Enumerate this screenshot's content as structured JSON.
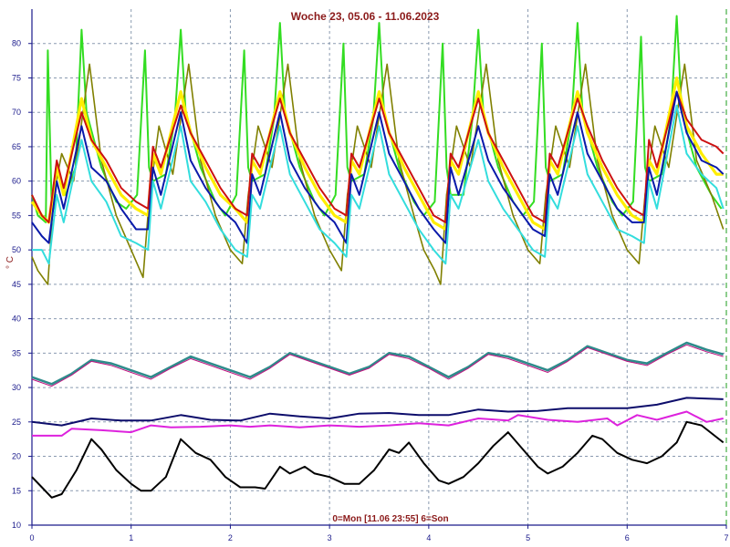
{
  "chart_data": {
    "type": "line",
    "title": "Woche 23, 05.06 - 11.06.2023",
    "subtitle": "0=Mon [11.06 23:55] 6=Son",
    "ylabel": "° C",
    "xlim": [
      0,
      7
    ],
    "ylim": [
      10,
      85
    ],
    "x_ticks": [
      "0",
      "1",
      "2",
      "3",
      "4",
      "5",
      "6",
      "7"
    ],
    "y_ticks": [
      "10",
      "15",
      "20",
      "25",
      "30",
      "35",
      "40",
      "45",
      "50",
      "55",
      "60",
      "65",
      "70",
      "75",
      "80"
    ],
    "grid": true,
    "colors": {
      "green": "#33dd22",
      "olive": "#808000",
      "yellow": "#ffee00",
      "red": "#cc1111",
      "blue": "#0a1aaa",
      "cyan": "#33dddd",
      "teal": "#2e8b8b",
      "magenta_thin": "#c0117f",
      "navy": "#0d0d6b",
      "magenta": "#dd22dd",
      "black": "#000000"
    },
    "series": [
      {
        "color": "green",
        "x": [
          0,
          0.06,
          0.14,
          0.16,
          0.2,
          0.22,
          0.25,
          0.34,
          0.44,
          0.5,
          0.55,
          0.7,
          0.85,
          0.95,
          1.06,
          1.14,
          1.18,
          1.22,
          1.35,
          1.44,
          1.5,
          1.55,
          1.7,
          1.85,
          1.95,
          2.06,
          2.14,
          2.18,
          2.22,
          2.35,
          2.44,
          2.5,
          2.55,
          2.7,
          2.85,
          2.95,
          3.06,
          3.14,
          3.18,
          3.22,
          3.35,
          3.44,
          3.5,
          3.55,
          3.7,
          3.85,
          3.95,
          4.06,
          4.14,
          4.18,
          4.22,
          4.35,
          4.44,
          4.5,
          4.55,
          4.7,
          4.85,
          4.95,
          5.06,
          5.14,
          5.18,
          5.22,
          5.35,
          5.44,
          5.5,
          5.55,
          5.7,
          5.85,
          5.95,
          6.06,
          6.14,
          6.18,
          6.22,
          6.35,
          6.44,
          6.5,
          6.55,
          6.7,
          6.85,
          6.95
        ],
        "y": [
          58,
          55,
          54,
          79,
          56,
          56,
          62,
          58,
          62,
          82,
          70,
          62,
          57,
          56,
          58,
          79,
          62,
          60,
          61,
          69,
          82,
          70,
          62,
          57,
          55,
          58,
          79,
          62,
          60,
          61,
          69,
          83,
          70,
          62,
          57,
          55,
          58,
          80,
          62,
          60,
          61,
          69,
          83,
          70,
          62,
          57,
          55,
          57,
          80,
          62,
          58,
          58,
          69,
          82,
          70,
          62,
          57,
          55,
          57,
          80,
          62,
          60,
          61,
          69,
          83,
          70,
          62,
          57,
          55,
          57,
          81,
          62,
          60,
          61,
          69,
          84,
          70,
          62,
          58,
          56
        ]
      },
      {
        "color": "olive",
        "x": [
          0,
          0.06,
          0.16,
          0.22,
          0.3,
          0.42,
          0.58,
          0.7,
          0.85,
          1.0,
          1.12,
          1.18,
          1.28,
          1.42,
          1.58,
          1.7,
          1.85,
          2.0,
          2.12,
          2.18,
          2.28,
          2.42,
          2.58,
          2.7,
          2.85,
          3.0,
          3.12,
          3.18,
          3.28,
          3.42,
          3.58,
          3.7,
          3.85,
          3.95,
          4.06,
          4.12,
          4.18,
          4.28,
          4.42,
          4.58,
          4.7,
          4.85,
          5.0,
          5.12,
          5.18,
          5.28,
          5.42,
          5.58,
          5.7,
          5.85,
          6.0,
          6.12,
          6.18,
          6.28,
          6.42,
          6.58,
          6.7,
          6.85,
          6.97
        ],
        "y": [
          49,
          47,
          45,
          58,
          64,
          60,
          77,
          63,
          55,
          50,
          46,
          57,
          68,
          61,
          77,
          63,
          55,
          50,
          48,
          58,
          68,
          62,
          77,
          63,
          55,
          50,
          47,
          58,
          68,
          62,
          77,
          63,
          55,
          50,
          47,
          45,
          58,
          68,
          62,
          77,
          63,
          55,
          50,
          48,
          58,
          68,
          62,
          77,
          63,
          55,
          50,
          48,
          58,
          68,
          62,
          77,
          63,
          58,
          53
        ]
      },
      {
        "color": "yellow",
        "x": [
          0,
          0.1,
          0.17,
          0.25,
          0.32,
          0.5,
          0.6,
          0.75,
          0.9,
          1.05,
          1.17,
          1.22,
          1.3,
          1.5,
          1.6,
          1.75,
          1.9,
          2.05,
          2.17,
          2.22,
          2.3,
          2.5,
          2.6,
          2.75,
          2.9,
          3.05,
          3.17,
          3.22,
          3.3,
          3.5,
          3.6,
          3.75,
          3.9,
          4.05,
          4.17,
          4.22,
          4.3,
          4.5,
          4.6,
          4.75,
          4.9,
          5.05,
          5.17,
          5.22,
          5.3,
          5.5,
          5.6,
          5.75,
          5.9,
          6.05,
          6.17,
          6.22,
          6.3,
          6.5,
          6.6,
          6.75,
          6.9,
          6.97
        ],
        "y": [
          57,
          55,
          54,
          62,
          58,
          72,
          66,
          62,
          58,
          56,
          55,
          64,
          61,
          73,
          67,
          62,
          58,
          56,
          54,
          63,
          61,
          73,
          67,
          62,
          58,
          55,
          54,
          63,
          61,
          73,
          67,
          62,
          58,
          54,
          53,
          63,
          61,
          73,
          67,
          62,
          58,
          54,
          53,
          63,
          61,
          73,
          67,
          62,
          58,
          55,
          54,
          63,
          61,
          75,
          68,
          64,
          61,
          61
        ]
      },
      {
        "color": "red",
        "x": [
          0,
          0.1,
          0.17,
          0.25,
          0.32,
          0.5,
          0.6,
          0.75,
          0.9,
          1.05,
          1.17,
          1.22,
          1.3,
          1.5,
          1.6,
          1.75,
          1.9,
          2.05,
          2.17,
          2.22,
          2.3,
          2.5,
          2.6,
          2.75,
          2.9,
          3.05,
          3.17,
          3.22,
          3.3,
          3.5,
          3.6,
          3.75,
          3.9,
          4.05,
          4.17,
          4.22,
          4.3,
          4.5,
          4.6,
          4.75,
          4.9,
          5.05,
          5.17,
          5.22,
          5.3,
          5.5,
          5.6,
          5.75,
          5.9,
          6.05,
          6.17,
          6.22,
          6.3,
          6.5,
          6.6,
          6.75,
          6.9,
          6.97
        ],
        "y": [
          58,
          55,
          54,
          63,
          59,
          70,
          66,
          63,
          59,
          57,
          56,
          65,
          62,
          71,
          67,
          63,
          59,
          56,
          55,
          64,
          62,
          72,
          67,
          63,
          59,
          56,
          55,
          64,
          62,
          72,
          67,
          63,
          59,
          55,
          54,
          64,
          62,
          72,
          67,
          63,
          59,
          55,
          54,
          64,
          62,
          72,
          68,
          63,
          59,
          56,
          55,
          66,
          62,
          73,
          69,
          66,
          65,
          64
        ]
      },
      {
        "color": "blue",
        "x": [
          0,
          0.1,
          0.17,
          0.25,
          0.32,
          0.5,
          0.6,
          0.75,
          0.9,
          1.05,
          1.17,
          1.22,
          1.3,
          1.5,
          1.6,
          1.75,
          1.9,
          2.05,
          2.17,
          2.22,
          2.3,
          2.5,
          2.6,
          2.75,
          2.9,
          3.05,
          3.17,
          3.22,
          3.3,
          3.5,
          3.6,
          3.75,
          3.9,
          4.05,
          4.17,
          4.22,
          4.3,
          4.5,
          4.6,
          4.75,
          4.9,
          5.05,
          5.17,
          5.22,
          5.3,
          5.5,
          5.6,
          5.75,
          5.9,
          6.05,
          6.17,
          6.22,
          6.3,
          6.5,
          6.6,
          6.75,
          6.9,
          6.97
        ],
        "y": [
          54,
          52,
          51,
          60,
          56,
          68,
          62,
          60,
          56,
          53,
          53,
          62,
          58,
          70,
          63,
          59,
          56,
          54,
          51,
          61,
          58,
          70,
          63,
          59,
          56,
          54,
          51,
          61,
          58,
          70,
          64,
          60,
          56,
          53,
          51,
          62,
          58,
          68,
          63,
          59,
          56,
          53,
          52,
          61,
          58,
          70,
          64,
          60,
          56,
          54,
          54,
          62,
          58,
          73,
          67,
          63,
          62,
          61
        ]
      },
      {
        "color": "cyan",
        "x": [
          0,
          0.1,
          0.17,
          0.25,
          0.32,
          0.5,
          0.6,
          0.75,
          0.9,
          1.05,
          1.17,
          1.22,
          1.3,
          1.5,
          1.6,
          1.75,
          1.9,
          2.05,
          2.17,
          2.22,
          2.3,
          2.5,
          2.6,
          2.75,
          2.9,
          3.05,
          3.17,
          3.22,
          3.3,
          3.5,
          3.6,
          3.75,
          3.9,
          4.05,
          4.17,
          4.22,
          4.3,
          4.5,
          4.6,
          4.75,
          4.9,
          5.05,
          5.17,
          5.22,
          5.3,
          5.5,
          5.6,
          5.75,
          5.9,
          6.05,
          6.17,
          6.22,
          6.3,
          6.5,
          6.6,
          6.75,
          6.9,
          6.97
        ],
        "y": [
          50,
          50,
          48,
          58,
          54,
          66,
          60,
          57,
          52,
          51,
          50,
          60,
          56,
          68,
          60,
          57,
          53,
          50,
          49,
          58,
          56,
          68,
          61,
          57,
          53,
          51,
          49,
          58,
          56,
          68,
          61,
          57,
          53,
          50,
          48,
          58,
          56,
          66,
          60,
          56,
          53,
          50,
          49,
          58,
          56,
          68,
          61,
          57,
          53,
          52,
          51,
          60,
          56,
          71,
          64,
          61,
          59,
          56
        ]
      },
      {
        "color": "teal",
        "x": [
          0,
          0.2,
          0.4,
          0.6,
          0.8,
          1.0,
          1.2,
          1.4,
          1.6,
          1.8,
          2.0,
          2.2,
          2.4,
          2.6,
          2.8,
          3.0,
          3.2,
          3.4,
          3.6,
          3.8,
          4.0,
          4.2,
          4.4,
          4.6,
          4.8,
          5.0,
          5.2,
          5.4,
          5.6,
          5.8,
          6.0,
          6.2,
          6.4,
          6.6,
          6.8,
          6.97
        ],
        "y": [
          31.5,
          30.5,
          32,
          34,
          33.5,
          32.5,
          31.5,
          33,
          34.5,
          33.5,
          32.5,
          31.5,
          33,
          35,
          34,
          33,
          32,
          33,
          35,
          34.5,
          33,
          31.5,
          33,
          35,
          34.5,
          33.5,
          32.5,
          34,
          36,
          35,
          34,
          33.5,
          35,
          36.5,
          35.5,
          34.8
        ]
      },
      {
        "color": "magenta_thin",
        "x": [
          0,
          0.2,
          0.4,
          0.6,
          0.8,
          1.0,
          1.2,
          1.4,
          1.6,
          1.8,
          2.0,
          2.2,
          2.4,
          2.6,
          2.8,
          3.0,
          3.2,
          3.4,
          3.6,
          3.8,
          4.0,
          4.2,
          4.4,
          4.6,
          4.8,
          5.0,
          5.2,
          5.4,
          5.6,
          5.8,
          6.0,
          6.2,
          6.4,
          6.6,
          6.8,
          6.97
        ],
        "y": [
          31.2,
          30.2,
          31.8,
          33.8,
          33.2,
          32.2,
          31.2,
          32.8,
          34.2,
          33.2,
          32.2,
          31.2,
          32.8,
          34.8,
          33.8,
          32.8,
          31.8,
          32.8,
          34.8,
          34.2,
          32.8,
          31.2,
          32.8,
          34.8,
          34.2,
          33.2,
          32.2,
          33.8,
          35.8,
          34.8,
          33.8,
          33.2,
          34.8,
          36.2,
          35.2,
          34.5
        ]
      },
      {
        "color": "navy",
        "x": [
          0,
          0.3,
          0.6,
          0.9,
          1.2,
          1.5,
          1.8,
          2.1,
          2.4,
          2.7,
          3.0,
          3.3,
          3.6,
          3.9,
          4.2,
          4.5,
          4.8,
          5.1,
          5.4,
          5.7,
          6.0,
          6.3,
          6.6,
          6.97
        ],
        "y": [
          25,
          24.5,
          25.5,
          25.2,
          25.2,
          26,
          25.3,
          25.2,
          26.2,
          25.8,
          25.5,
          26.2,
          26.3,
          26,
          26,
          26.8,
          26.5,
          26.6,
          27,
          27,
          27,
          27.5,
          28.5,
          28.3
        ]
      },
      {
        "color": "magenta",
        "x": [
          0,
          0.3,
          0.4,
          0.7,
          1.0,
          1.2,
          1.4,
          1.7,
          2.0,
          2.2,
          2.4,
          2.7,
          3.0,
          3.3,
          3.6,
          3.9,
          4.2,
          4.5,
          4.8,
          4.9,
          5.2,
          5.5,
          5.8,
          5.9,
          6.1,
          6.3,
          6.6,
          6.8,
          6.97
        ],
        "y": [
          23,
          23,
          24,
          23.8,
          23.5,
          24.5,
          24.2,
          24.3,
          24.5,
          24.3,
          24.5,
          24.2,
          24.5,
          24.3,
          24.5,
          24.8,
          24.5,
          25.5,
          25.2,
          26,
          25.3,
          25,
          25.5,
          24.5,
          26,
          25.3,
          26.5,
          25,
          25.5
        ]
      },
      {
        "color": "black",
        "x": [
          0,
          0.1,
          0.2,
          0.3,
          0.45,
          0.6,
          0.7,
          0.85,
          1.0,
          1.1,
          1.2,
          1.35,
          1.5,
          1.65,
          1.8,
          1.95,
          2.1,
          2.25,
          2.35,
          2.5,
          2.6,
          2.75,
          2.85,
          3.0,
          3.15,
          3.3,
          3.45,
          3.6,
          3.7,
          3.8,
          3.95,
          4.1,
          4.2,
          4.35,
          4.5,
          4.65,
          4.8,
          4.95,
          5.1,
          5.2,
          5.35,
          5.5,
          5.65,
          5.75,
          5.9,
          6.05,
          6.2,
          6.35,
          6.5,
          6.6,
          6.75,
          6.97
        ],
        "y": [
          17,
          15.5,
          14,
          14.5,
          18,
          22.5,
          21,
          18,
          16,
          15,
          15,
          17,
          22.5,
          20.5,
          19.5,
          17,
          15.5,
          15.5,
          15.3,
          18.5,
          17.5,
          18.5,
          17.5,
          17,
          16,
          16,
          18,
          21,
          20.5,
          22,
          19,
          16.5,
          16,
          17,
          19,
          21.5,
          23.5,
          21,
          18.5,
          17.5,
          18.5,
          20.5,
          23,
          22.5,
          20.5,
          19.5,
          19,
          20,
          22,
          25,
          24.5,
          22
        ]
      }
    ]
  }
}
